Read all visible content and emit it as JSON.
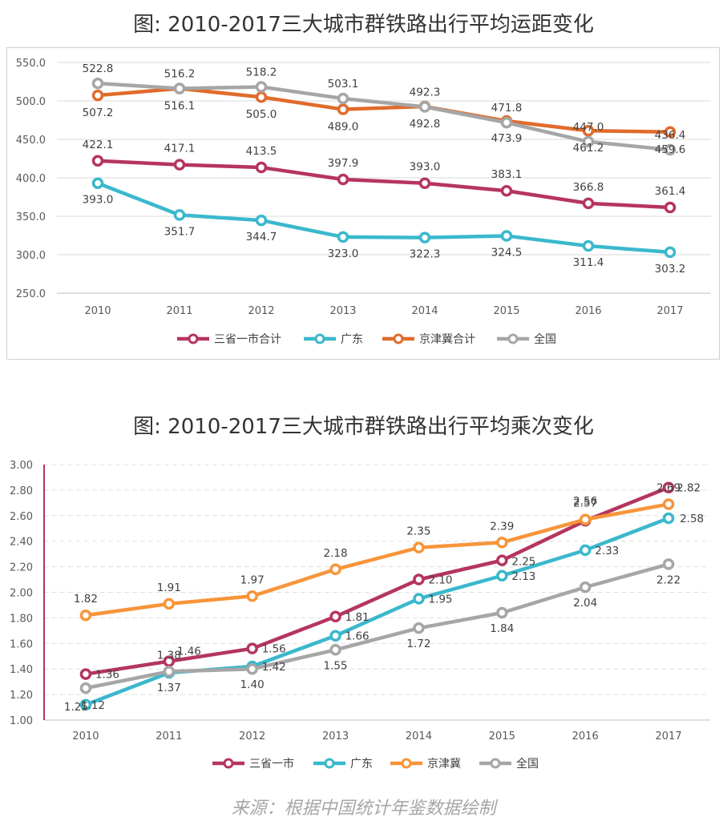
{
  "chart_data": [
    {
      "type": "line",
      "title": "图: 2010-2017三大城市群铁路出行平均运距变化",
      "categories": [
        "2010",
        "2011",
        "2012",
        "2013",
        "2014",
        "2015",
        "2016",
        "2017"
      ],
      "ylim": [
        250,
        550
      ],
      "yticks": [
        "250.0",
        "300.0",
        "350.0",
        "400.0",
        "450.0",
        "500.0",
        "550.0"
      ],
      "grid": true,
      "legend": "bottom",
      "series": [
        {
          "name": "三省一市合计",
          "color": "#b5355e",
          "values": [
            422.1,
            417.1,
            413.5,
            397.9,
            393.0,
            383.1,
            366.8,
            361.4
          ],
          "labels": [
            "422.1",
            "417.1",
            "413.5",
            "397.9",
            "393.0",
            "383.1",
            "366.8",
            "361.4"
          ]
        },
        {
          "name": "广东",
          "color": "#3ab8cc",
          "values": [
            393.0,
            351.7,
            344.7,
            323.0,
            322.3,
            324.5,
            311.4,
            303.2
          ],
          "labels": [
            "393.0",
            "351.7",
            "344.7",
            "323.0",
            "322.3",
            "324.5",
            "311.4",
            "303.2"
          ]
        },
        {
          "name": "京津冀合计",
          "color": "#e06b2b",
          "values": [
            507.2,
            516.1,
            505.0,
            489.0,
            492.8,
            473.9,
            461.2,
            459.6
          ],
          "labels": [
            "507.2",
            "516.1",
            "505.0",
            "489.0",
            "492.8",
            "473.9",
            "461.2",
            "459.6"
          ]
        },
        {
          "name": "全国",
          "color": "#a6a6a6",
          "values": [
            522.8,
            516.2,
            518.2,
            503.1,
            492.3,
            471.8,
            447.0,
            436.4
          ],
          "labels": [
            "522.8",
            "516.2",
            "518.2",
            "503.1",
            "492.3",
            "471.8",
            "447.0",
            "436.4"
          ]
        }
      ]
    },
    {
      "type": "line",
      "title": "图: 2010-2017三大城市群铁路出行平均乘次变化",
      "categories": [
        "2010",
        "2011",
        "2012",
        "2013",
        "2014",
        "2015",
        "2016",
        "2017"
      ],
      "ylim": [
        1.0,
        3.0
      ],
      "yticks": [
        "1.00",
        "1.20",
        "1.40",
        "1.60",
        "1.80",
        "2.00",
        "2.20",
        "2.40",
        "2.60",
        "2.80",
        "3.00"
      ],
      "grid": true,
      "legend": "bottom",
      "series": [
        {
          "name": "三省一市",
          "color": "#b5355e",
          "values": [
            1.36,
            1.46,
            1.56,
            1.81,
            2.1,
            2.25,
            2.56,
            2.82
          ],
          "labels": [
            "1.36",
            "1.46",
            "1.56",
            "1.81",
            "2.10",
            "2.25",
            "2.56",
            "2.82"
          ]
        },
        {
          "name": "广东",
          "color": "#3ab8cc",
          "values": [
            1.12,
            1.37,
            1.42,
            1.66,
            1.95,
            2.13,
            2.33,
            2.58
          ],
          "labels": [
            "1.12",
            "1.37",
            "1.42",
            "1.66",
            "1.95",
            "2.13",
            "2.33",
            "2.58"
          ]
        },
        {
          "name": "京津冀",
          "color": "#f7953a",
          "values": [
            1.82,
            1.91,
            1.97,
            2.18,
            2.35,
            2.39,
            2.57,
            2.69
          ],
          "labels": [
            "1.82",
            "1.91",
            "1.97",
            "2.18",
            "2.35",
            "2.39",
            "2.57",
            "2.69"
          ]
        },
        {
          "name": "全国",
          "color": "#a6a6a6",
          "values": [
            1.25,
            1.38,
            1.4,
            1.55,
            1.72,
            1.84,
            2.04,
            2.22
          ],
          "labels": [
            "1.25",
            "1.38",
            "1.40",
            "1.55",
            "1.72",
            "1.84",
            "2.04",
            "2.22"
          ]
        }
      ]
    }
  ],
  "source": "来源：根据中国统计年鉴数据绘制"
}
